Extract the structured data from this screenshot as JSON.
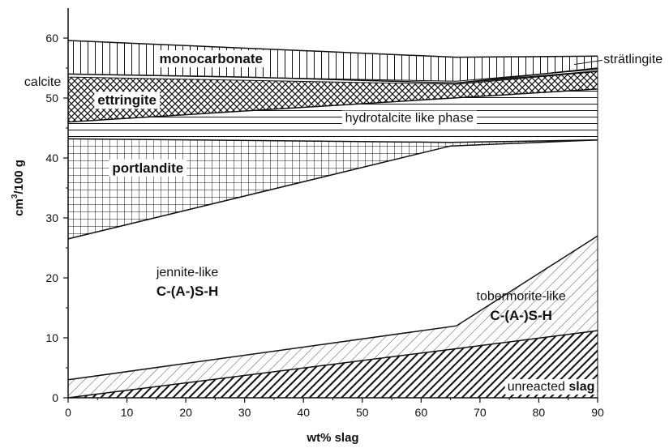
{
  "chart_data": {
    "type": "area",
    "xlabel": "wt% slag",
    "ylabel_main": "cm",
    "ylabel_sup": "3",
    "ylabel_rest": "/100 g",
    "xlim": [
      0,
      90
    ],
    "ylim": [
      0,
      65
    ],
    "x_ticks": [
      0,
      10,
      20,
      30,
      40,
      50,
      60,
      70,
      80,
      90
    ],
    "y_ticks": [
      0,
      10,
      20,
      30,
      40,
      50,
      60
    ],
    "stacked_series": [
      {
        "name": "unreacted slag",
        "pattern": "dense-diag",
        "x": [
          0,
          66,
          90
        ],
        "upper": [
          0,
          8.2,
          11.2
        ]
      },
      {
        "name": "tobermorite-like C-(A-)S-H",
        "pattern": "light-diag",
        "x": [
          0,
          66,
          90
        ],
        "upper": [
          3,
          12,
          27
        ]
      },
      {
        "name": "jennite-like C-(A-)S-H",
        "pattern": "none",
        "x": [
          0,
          65,
          90
        ],
        "upper": [
          26.5,
          42,
          43
        ]
      },
      {
        "name": "portlandite",
        "pattern": "grid",
        "x": [
          0,
          65,
          90
        ],
        "upper": [
          43.2,
          42.6,
          43
        ]
      },
      {
        "name": "hydrotalcite like phase",
        "pattern": "horizontal",
        "x": [
          0,
          90
        ],
        "upper": [
          46,
          51.5
        ]
      },
      {
        "name": "ettringite",
        "pattern": "crosshatch",
        "x": [
          0,
          30,
          66,
          90
        ],
        "upper": [
          54,
          53.5,
          52.5,
          54.5
        ]
      },
      {
        "name": "strätlingite",
        "pattern": "light-diag",
        "x": [
          66,
          90
        ],
        "upper": [
          52.5,
          55
        ]
      },
      {
        "name": "monocarbonate",
        "pattern": "vertical",
        "x": [
          0,
          66,
          90
        ],
        "upper": [
          59.6,
          56.8,
          57
        ]
      }
    ],
    "calcite_band": {
      "x": [
        0,
        66,
        90
      ],
      "lower": [
        53.5,
        52.3,
        54.4
      ],
      "upper": [
        54,
        52.8,
        54.8
      ]
    },
    "labels": {
      "monocarbonate": "monocarbonate",
      "stratlingite": "strätlingite",
      "calcite": "calcite",
      "ettringite": "ettringite",
      "hydrotalcite": "hydrotalcite like phase",
      "portlandite": "portlandite",
      "jennite_line1": "jennite-like",
      "jennite_line2": "C-(A-)S-H",
      "tobermorite_line1": "tobermorite-like",
      "tobermorite_line2": "C-(A-)S-H",
      "unreacted": "unreacted ",
      "slag": "slag"
    }
  }
}
